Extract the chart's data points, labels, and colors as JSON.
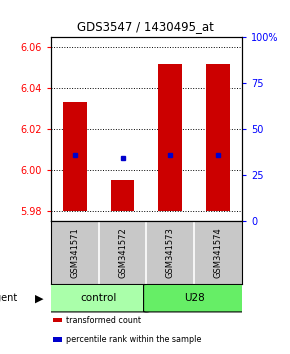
{
  "title": "GDS3547 / 1430495_at",
  "samples": [
    "GSM341571",
    "GSM341572",
    "GSM341573",
    "GSM341574"
  ],
  "bar_bottoms": [
    5.98,
    5.98,
    5.98,
    5.98
  ],
  "bar_values": [
    6.033,
    5.995,
    6.052,
    6.052
  ],
  "percentile_values": [
    6.007,
    6.006,
    6.007,
    6.007
  ],
  "ylim_left": [
    5.975,
    6.065
  ],
  "ylim_right": [
    0,
    100
  ],
  "yticks_left": [
    5.98,
    6.0,
    6.02,
    6.04,
    6.06
  ],
  "yticks_right": [
    0,
    25,
    50,
    75,
    100
  ],
  "bar_color": "#cc0000",
  "percentile_color": "#0000cc",
  "agent_groups": [
    {
      "label": "control",
      "color": "#aaffaa"
    },
    {
      "label": "U28",
      "color": "#66ee66"
    }
  ],
  "legend_items": [
    {
      "label": "transformed count",
      "color": "#cc0000"
    },
    {
      "label": "percentile rank within the sample",
      "color": "#0000cc"
    }
  ],
  "background_color": "#ffffff",
  "bar_width": 0.5
}
